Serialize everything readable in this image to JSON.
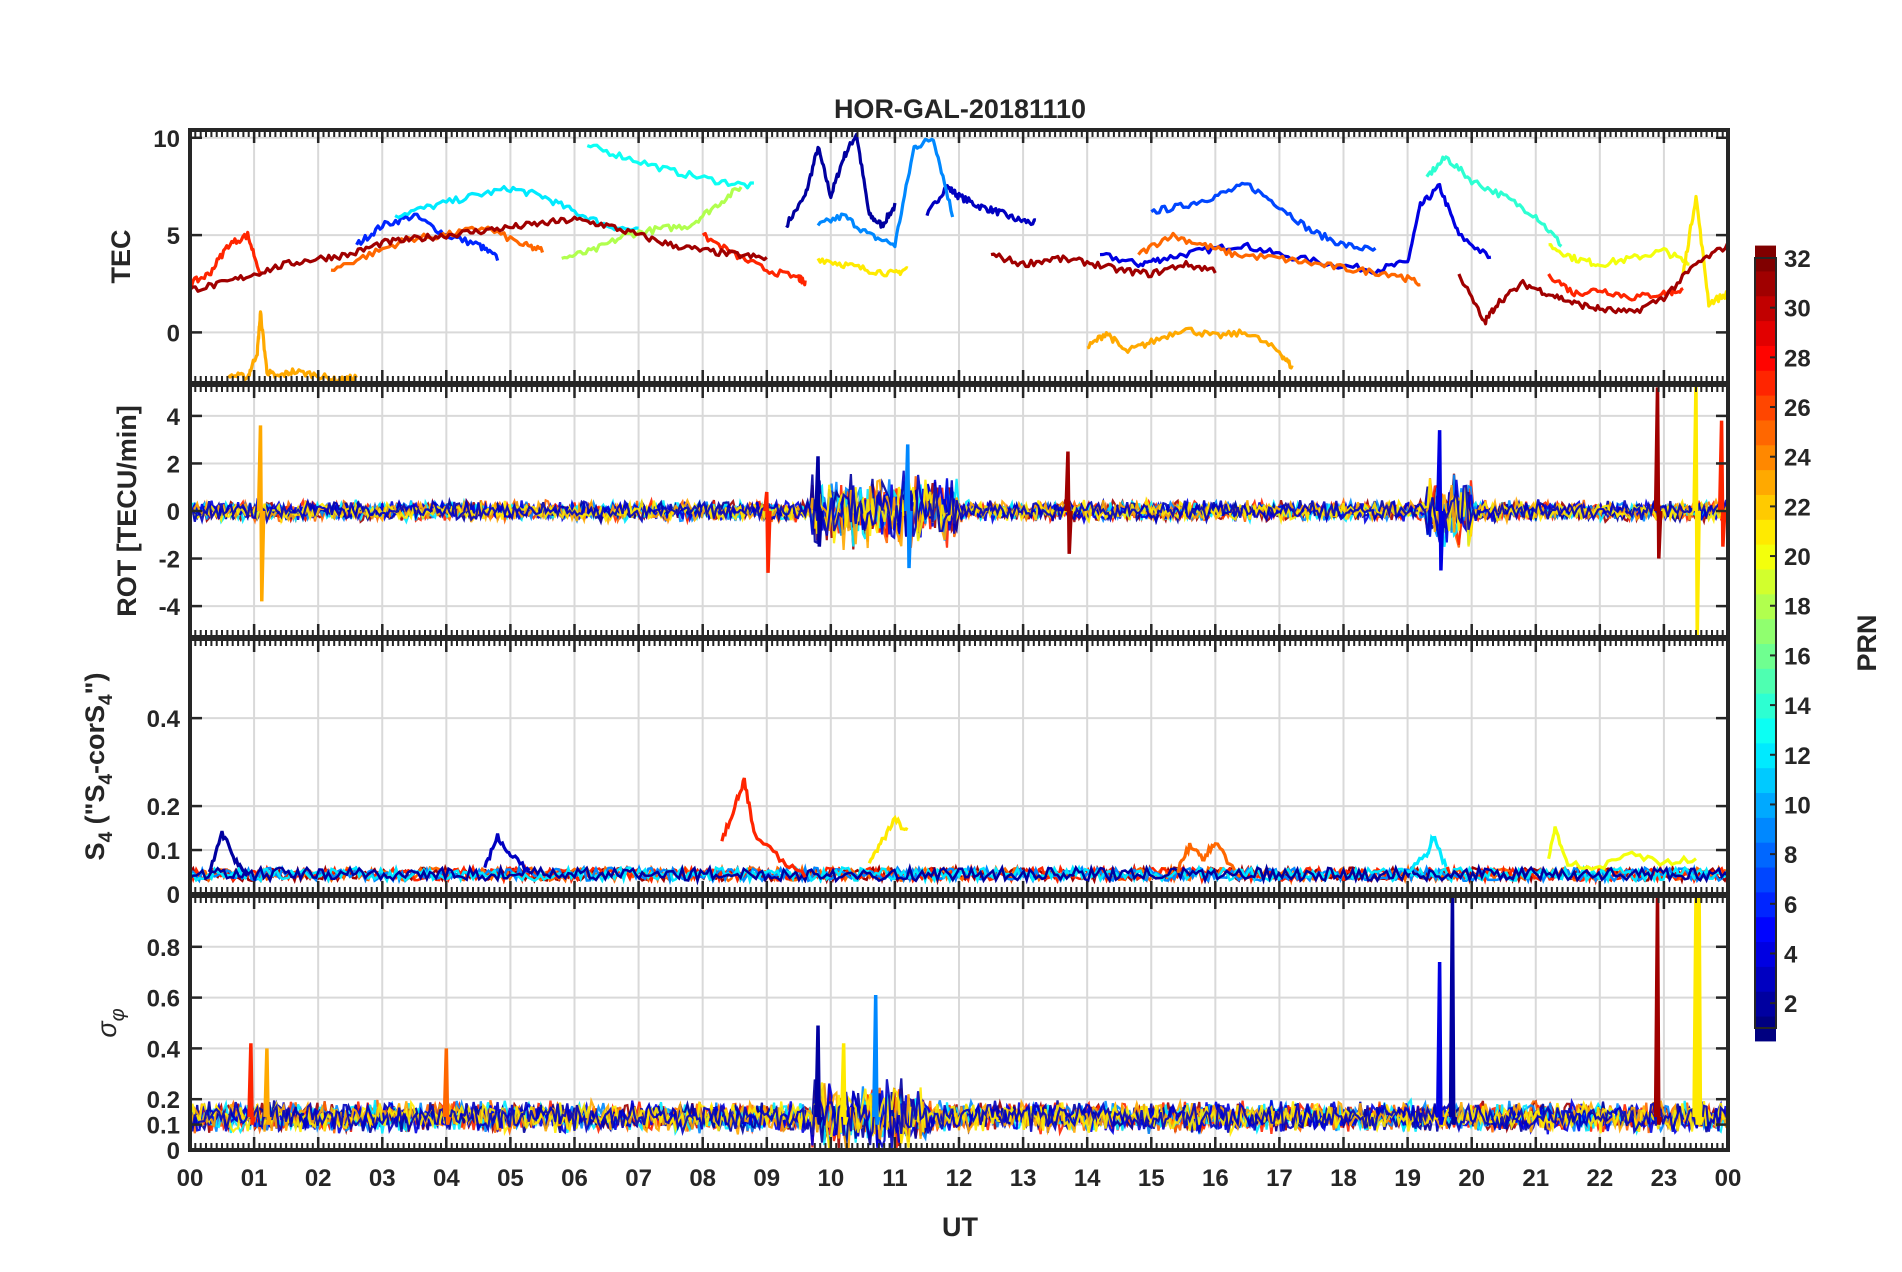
{
  "chart_data": {
    "type": "line",
    "title": "HOR-GAL-20181110",
    "xlabel": "UT",
    "x_ticks": [
      "00",
      "01",
      "02",
      "03",
      "04",
      "05",
      "06",
      "07",
      "08",
      "09",
      "10",
      "11",
      "12",
      "13",
      "14",
      "15",
      "16",
      "17",
      "18",
      "19",
      "20",
      "21",
      "22",
      "23",
      "00"
    ],
    "xlim": [
      0,
      24
    ],
    "grid": true,
    "panels": [
      {
        "id": "tec",
        "ylabel": "TEC",
        "ylim": [
          -2.6,
          10.4
        ],
        "yticks": [
          0,
          5,
          10
        ],
        "ytick_labels": [
          "0",
          "5",
          "10"
        ],
        "series": [
          {
            "prn": 2,
            "x": [
              9.3,
              9.6,
              9.8,
              10.0,
              10.2,
              10.4,
              10.6,
              10.8,
              11.0
            ],
            "y": [
              5.5,
              7.0,
              9.5,
              7.0,
              9.0,
              10.2,
              6.0,
              5.5,
              6.5
            ]
          },
          {
            "prn": 3,
            "x": [
              11.5,
              11.8,
              12.0,
              12.3,
              12.6,
              12.9,
              13.2
            ],
            "y": [
              6.0,
              7.5,
              7.0,
              6.5,
              6.2,
              5.8,
              5.6
            ]
          },
          {
            "prn": 4,
            "x": [
              14.2,
              14.8,
              15.2,
              15.8,
              16.4,
              17.0,
              17.8,
              18.5,
              19.0,
              19.2,
              19.5,
              19.8,
              20.3
            ],
            "y": [
              4.0,
              3.5,
              3.8,
              4.2,
              4.5,
              4.0,
              3.5,
              3.2,
              3.6,
              6.5,
              7.5,
              5.0,
              3.8
            ]
          },
          {
            "prn": 6,
            "x": [
              2.6,
              3.0,
              3.5,
              4.0,
              4.5,
              4.8
            ],
            "y": [
              4.5,
              5.5,
              6.0,
              5.0,
              4.5,
              3.8
            ]
          },
          {
            "prn": 7,
            "x": [
              15.0,
              15.5,
              16.0,
              16.5,
              17.0,
              17.5,
              18.0,
              18.5
            ],
            "y": [
              6.2,
              6.5,
              7.0,
              7.6,
              6.5,
              5.2,
              4.5,
              4.2
            ]
          },
          {
            "prn": 9,
            "x": [
              9.8,
              10.2,
              10.6,
              11.0,
              11.3,
              11.6,
              11.9
            ],
            "y": [
              5.5,
              6.0,
              5.0,
              4.5,
              9.5,
              10.0,
              6.0
            ]
          },
          {
            "prn": 12,
            "x": [
              3.2,
              3.8,
              4.4,
              5.0,
              5.5,
              6.0,
              6.5,
              7.0
            ],
            "y": [
              6.0,
              6.5,
              7.0,
              7.4,
              7.0,
              6.2,
              5.5,
              5.2
            ]
          },
          {
            "prn": 13,
            "x": [
              6.2,
              6.8,
              7.5,
              8.2,
              8.8
            ],
            "y": [
              9.6,
              9.0,
              8.3,
              7.8,
              7.5
            ]
          },
          {
            "prn": 14,
            "x": [
              19.3,
              19.6,
              20.0,
              20.5,
              21.0,
              21.4
            ],
            "y": [
              8.0,
              9.0,
              7.8,
              7.0,
              6.0,
              4.5
            ]
          },
          {
            "prn": 18,
            "x": [
              5.8,
              6.3,
              6.8,
              7.3,
              7.8,
              8.2,
              8.6
            ],
            "y": [
              3.8,
              4.2,
              5.0,
              5.3,
              5.5,
              6.5,
              7.5
            ]
          },
          {
            "prn": 20,
            "x": [
              21.2,
              21.6,
              22.0,
              22.5,
              23.0,
              23.4
            ],
            "y": [
              4.5,
              3.8,
              3.5,
              3.8,
              4.2,
              3.5
            ]
          },
          {
            "prn": 21,
            "x": [
              9.8,
              10.2,
              10.6,
              11.0,
              11.2,
              23.3,
              23.5,
              23.7,
              24.0
            ],
            "y": [
              3.8,
              3.5,
              3.2,
              3.0,
              3.3,
              3.0,
              7.0,
              1.5,
              2.0
            ]
          },
          {
            "prn": 23,
            "x": [
              0.6,
              0.9,
              1.05,
              1.1,
              1.2,
              1.35,
              1.6,
              2.0,
              2.3,
              2.6,
              14.0,
              14.3,
              14.6,
              15.0,
              15.5,
              16.0,
              16.5,
              17.0,
              17.2
            ],
            "y": [
              -2.2,
              -2.3,
              -1.0,
              1.0,
              -2.0,
              -2.3,
              -2.0,
              -2.2,
              -2.5,
              -2.3,
              -0.8,
              0.0,
              -1.0,
              -0.5,
              0.2,
              -0.2,
              0.0,
              -1.0,
              -1.8
            ]
          },
          {
            "prn": 25,
            "x": [
              2.2,
              2.8,
              3.4,
              4.0,
              4.6,
              5.2,
              5.5,
              14.8,
              15.3,
              15.8,
              16.3,
              17.0,
              17.6,
              18.2,
              18.8,
              19.2
            ],
            "y": [
              3.2,
              4.0,
              4.8,
              5.0,
              5.4,
              4.5,
              4.2,
              4.0,
              5.0,
              4.5,
              4.0,
              3.8,
              3.5,
              3.2,
              3.0,
              2.5
            ]
          },
          {
            "prn": 27,
            "x": [
              0.0,
              0.3,
              0.6,
              0.9,
              1.1,
              8.0,
              8.5,
              9.0,
              9.5,
              9.6,
              21.2,
              21.6,
              22.0,
              22.5,
              23.0,
              23.3
            ],
            "y": [
              2.5,
              3.0,
              4.5,
              5.0,
              3.0,
              5.0,
              4.0,
              3.2,
              2.8,
              2.5,
              3.0,
              2.0,
              2.2,
              1.8,
              2.0,
              2.2
            ]
          },
          {
            "prn": 31,
            "x": [
              0.0,
              0.5,
              1.0,
              1.5,
              2.0,
              2.5,
              3.0,
              3.5,
              4.0,
              4.5,
              5.0,
              5.5,
              6.0,
              6.5,
              7.0,
              7.5,
              8.0,
              8.5,
              9.0,
              12.5,
              13.0,
              13.5,
              14.0,
              14.5,
              15.0,
              15.5,
              16.0,
              19.8,
              20.2,
              20.4,
              20.8,
              21.2,
              21.6,
              22.0,
              22.5,
              23.0,
              23.5,
              24.0
            ],
            "y": [
              2.2,
              2.5,
              3.0,
              3.5,
              3.8,
              4.0,
              4.6,
              4.8,
              5.0,
              5.2,
              5.4,
              5.6,
              5.8,
              5.5,
              5.0,
              4.5,
              4.2,
              4.0,
              3.8,
              4.0,
              3.5,
              3.8,
              3.6,
              3.2,
              3.0,
              3.5,
              3.2,
              3.0,
              0.5,
              1.5,
              2.5,
              2.0,
              1.5,
              1.2,
              1.0,
              1.8,
              3.5,
              4.5
            ]
          }
        ]
      },
      {
        "id": "rot",
        "ylabel": "ROT [TECU/min]",
        "ylim": [
          -5.3,
          5.3
        ],
        "yticks": [
          -4,
          -2,
          0,
          2,
          4
        ],
        "ytick_labels": [
          "-4",
          "-2",
          "0",
          "2",
          "4"
        ],
        "spikes": [
          {
            "prn": 23,
            "x": 1.1,
            "min": -3.8,
            "max": 3.6
          },
          {
            "prn": 27,
            "x": 9.0,
            "min": -2.6,
            "max": 0.8
          },
          {
            "prn": 2,
            "x": 9.8,
            "min": -1.5,
            "max": 2.3
          },
          {
            "prn": 9,
            "x": 11.2,
            "min": -2.4,
            "max": 2.8
          },
          {
            "prn": 31,
            "x": 13.7,
            "min": -1.8,
            "max": 2.5
          },
          {
            "prn": 4,
            "x": 19.5,
            "min": -2.5,
            "max": 3.4
          },
          {
            "prn": 31,
            "x": 22.9,
            "min": -2.0,
            "max": 5.2
          },
          {
            "prn": 21,
            "x": 23.5,
            "min": -5.3,
            "max": 5.3
          },
          {
            "prn": 27,
            "x": 23.9,
            "min": -1.5,
            "max": 3.8
          }
        ]
      },
      {
        "id": "s4",
        "ylabel": "S4 (\"S4-corS4\")",
        "ylim": [
          0,
          0.58
        ],
        "yticks": [
          0,
          0.1,
          0.2,
          0.4
        ],
        "ytick_labels": [
          "0",
          "0.1",
          "0.2",
          "0.4"
        ],
        "series": [
          {
            "prn": 2,
            "x": [
              0.3,
              0.5,
              0.7,
              0.9
            ],
            "y": [
              0.05,
              0.14,
              0.08,
              0.04
            ]
          },
          {
            "prn": 3,
            "x": [
              4.6,
              4.8,
              5.0,
              5.3
            ],
            "y": [
              0.06,
              0.13,
              0.09,
              0.05
            ]
          },
          {
            "prn": 27,
            "x": [
              8.3,
              8.5,
              8.65,
              8.8,
              9.2,
              9.6
            ],
            "y": [
              0.12,
              0.2,
              0.26,
              0.14,
              0.08,
              0.04
            ]
          },
          {
            "prn": 21,
            "x": [
              10.6,
              10.8,
              11.0,
              11.2
            ],
            "y": [
              0.07,
              0.12,
              0.17,
              0.14
            ]
          },
          {
            "prn": 25,
            "x": [
              15.4,
              15.6,
              15.8,
              16.0,
              16.3
            ],
            "y": [
              0.05,
              0.11,
              0.08,
              0.12,
              0.05
            ]
          },
          {
            "prn": 12,
            "x": [
              19.0,
              19.3,
              19.4,
              19.6
            ],
            "y": [
              0.05,
              0.09,
              0.13,
              0.06
            ]
          },
          {
            "prn": 20,
            "x": [
              21.2,
              21.3,
              21.5,
              22.0,
              22.5,
              23.0,
              23.5
            ],
            "y": [
              0.08,
              0.15,
              0.07,
              0.06,
              0.09,
              0.07,
              0.08
            ]
          }
        ]
      },
      {
        "id": "sigma",
        "ylabel": "σφ",
        "ylim": [
          0,
          1.0
        ],
        "yticks": [
          0,
          0.1,
          0.2,
          0.4,
          0.6,
          0.8
        ],
        "ytick_labels": [
          "0",
          "0.1",
          "0.2",
          "0.4",
          "0.6",
          "0.8"
        ],
        "spikes": [
          {
            "prn": 27,
            "x": 0.95,
            "min": 0.1,
            "max": 0.42
          },
          {
            "prn": 23,
            "x": 1.2,
            "min": 0.1,
            "max": 0.4
          },
          {
            "prn": 25,
            "x": 4.0,
            "min": 0.1,
            "max": 0.4
          },
          {
            "prn": 2,
            "x": 9.8,
            "min": 0.1,
            "max": 0.49
          },
          {
            "prn": 21,
            "x": 10.2,
            "min": 0.1,
            "max": 0.42
          },
          {
            "prn": 9,
            "x": 10.7,
            "min": 0.1,
            "max": 0.61
          },
          {
            "prn": 4,
            "x": 19.5,
            "min": 0.1,
            "max": 0.74
          },
          {
            "prn": 2,
            "x": 19.7,
            "min": 0.1,
            "max": 1.0
          },
          {
            "prn": 31,
            "x": 22.9,
            "min": 0.1,
            "max": 1.0
          },
          {
            "prn": 21,
            "x": 23.5,
            "min": 0.1,
            "max": 1.0
          },
          {
            "prn": 21,
            "x": 23.55,
            "min": 0.1,
            "max": 1.0
          }
        ]
      }
    ],
    "colorbar": {
      "label": "PRN",
      "range": [
        1,
        32
      ],
      "colormap": "jet",
      "ticks": [
        2,
        4,
        6,
        8,
        10,
        12,
        14,
        16,
        18,
        20,
        22,
        24,
        26,
        28,
        30,
        32
      ],
      "tick_labels": [
        "2",
        "4",
        "6",
        "8",
        "10",
        "12",
        "14",
        "16",
        "18",
        "20",
        "22",
        "24",
        "26",
        "28",
        "30",
        "32"
      ]
    }
  }
}
